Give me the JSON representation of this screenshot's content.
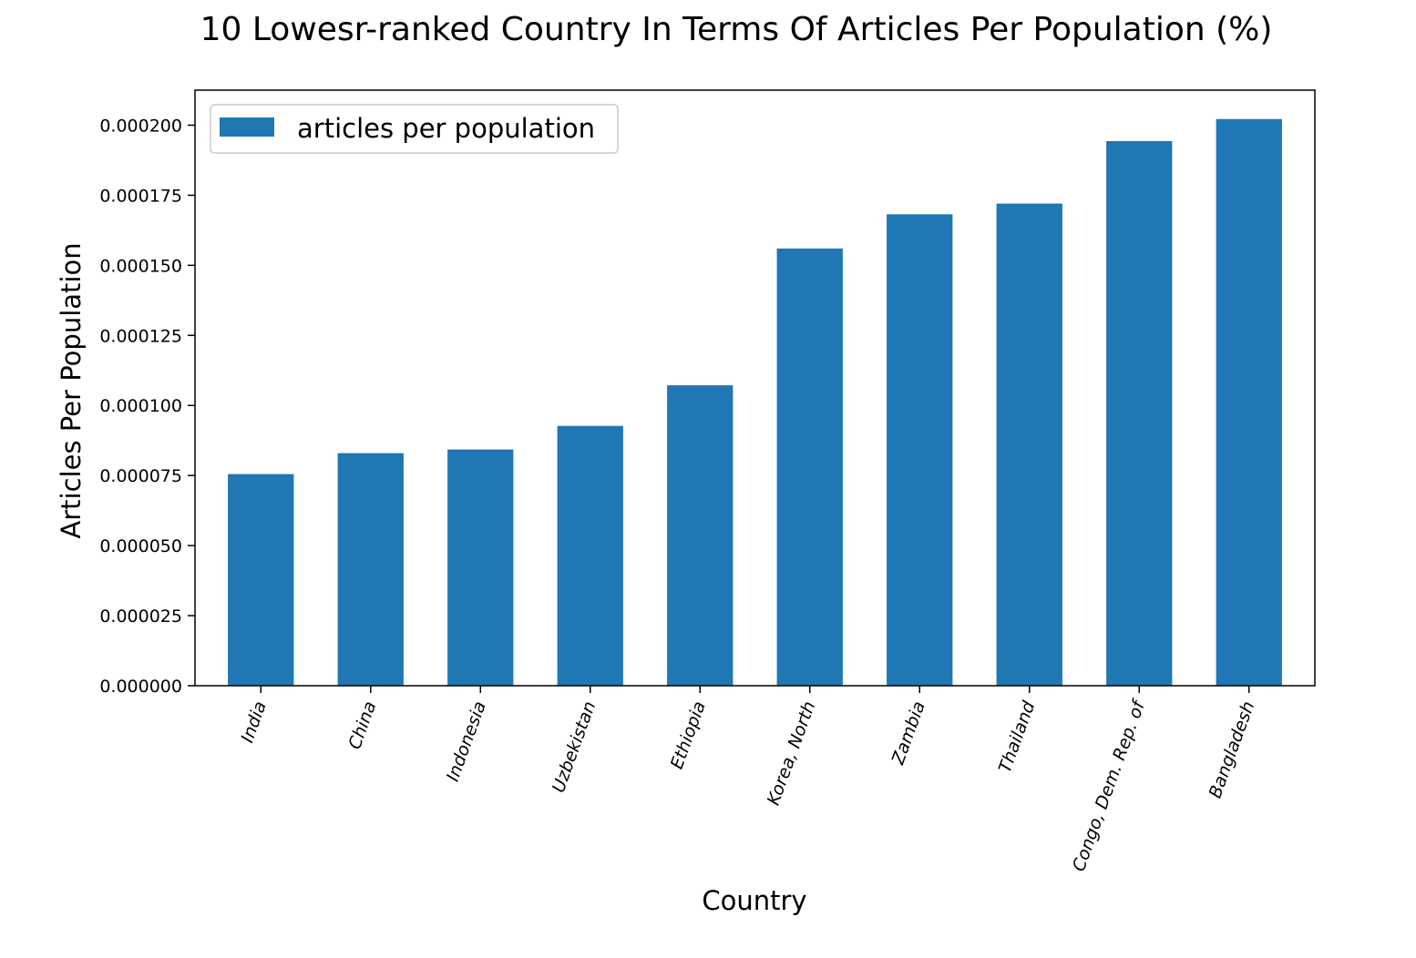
{
  "chart_data": {
    "type": "bar",
    "title": "10 Lowesr-ranked Country In Terms Of Articles Per Population (%)",
    "xlabel": "Country",
    "ylabel": "Articles Per Population",
    "categories": [
      "India",
      "China",
      "Indonesia",
      "Uzbekistan",
      "Ethiopia",
      "Korea, North",
      "Zambia",
      "Thailand",
      "Congo, Dem. Rep. of",
      "Bangladesh"
    ],
    "series": [
      {
        "name": "articles per population",
        "color": "#1f77b4",
        "values": [
          7.55e-05,
          8.3e-05,
          8.43e-05,
          9.27e-05,
          0.0001072,
          0.000156,
          0.0001682,
          0.000172,
          0.0001943,
          0.0002022
        ]
      }
    ],
    "yticks": [
      "0.000000",
      "0.000025",
      "0.000050",
      "0.000075",
      "0.000100",
      "0.000125",
      "0.000150",
      "0.000175",
      "0.000200"
    ],
    "ylim": [
      0,
      0.0002125
    ],
    "grid": false,
    "legend_position": "top-left"
  }
}
